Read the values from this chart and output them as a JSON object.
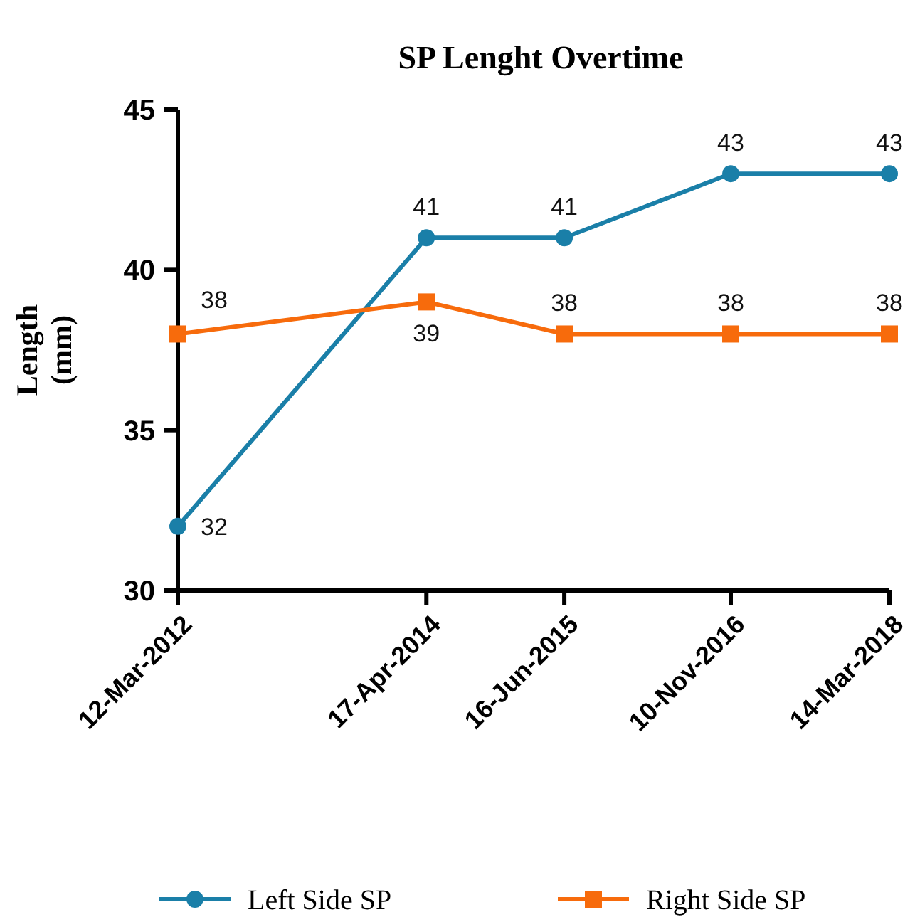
{
  "chart_data": {
    "type": "line",
    "title": "SP Lenght Overtime",
    "ylabel": "Length\n(mm)",
    "x": [
      "2012-03-12",
      "2014-04-17",
      "2015-06-16",
      "2016-11-10",
      "2018-03-14"
    ],
    "xlim": [
      "2012-03-12",
      "2018-03-14"
    ],
    "xticks": [
      {
        "value": "2012-03-12",
        "label": "12-Mar-2012"
      },
      {
        "value": "2014-04-17",
        "label": "17-Apr-2014"
      },
      {
        "value": "2015-06-16",
        "label": "16-Jun-2015"
      },
      {
        "value": "2016-11-10",
        "label": "10-Nov-2016"
      },
      {
        "value": "2018-03-14",
        "label": "14-Mar-2018"
      }
    ],
    "ylim": [
      30,
      45
    ],
    "yticks": [
      30,
      35,
      40,
      45
    ],
    "series": [
      {
        "name": "Left Side SP",
        "color": "#1a7fa8",
        "values": [
          32,
          41,
          41,
          43,
          43
        ],
        "marker": "circle"
      },
      {
        "name": "Right Side SP",
        "color": "#f76b0c",
        "values": [
          38,
          39,
          38,
          38,
          38
        ],
        "marker": "square"
      }
    ],
    "data_labels": true,
    "grid": false,
    "legend": "bottom"
  }
}
